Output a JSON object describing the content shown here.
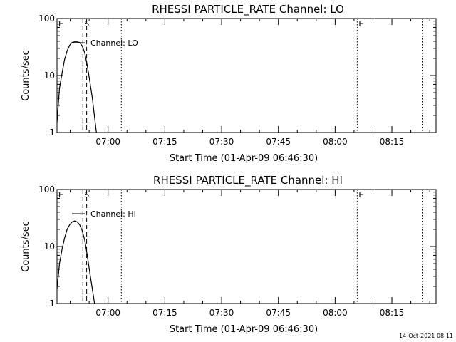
{
  "timestamp": "14-Oct-2021 08:11",
  "chart_data": [
    {
      "type": "line",
      "title": "RHESSI PARTICLE_RATE Channel: LO",
      "xlabel": "Start Time (01-Apr-09 06:46:30)",
      "ylabel": "Counts/sec",
      "yscale": "log",
      "ylim": [
        1,
        100
      ],
      "xlim": [
        "06:46:30",
        "08:26:40"
      ],
      "xticks": [
        "07:00",
        "07:15",
        "07:30",
        "07:45",
        "08:00",
        "08:15"
      ],
      "yticks": [
        "1",
        "10",
        "100"
      ],
      "grid": false,
      "legend": {
        "position": "top-left",
        "label": "Channel: LO"
      },
      "markers": [
        {
          "label": "E",
          "time": "06:46:30",
          "style": "dotted"
        },
        {
          "label": "S",
          "time": "06:53:20",
          "style": "dashed"
        },
        {
          "label": "",
          "time": "06:54:20",
          "style": "dashed"
        },
        {
          "label": "",
          "time": "07:03:30",
          "style": "dotted"
        },
        {
          "label": "E",
          "time": "08:05:50",
          "style": "dotted"
        },
        {
          "label": "",
          "time": "08:23:00",
          "style": "dotted"
        }
      ],
      "series": [
        {
          "name": "Channel: LO",
          "x": [
            "06:46:30",
            "06:47:10",
            "06:47:50",
            "06:48:30",
            "06:49:10",
            "06:49:50",
            "06:50:30",
            "06:51:10",
            "06:51:50",
            "06:52:30",
            "06:53:10",
            "06:53:50",
            "06:54:30",
            "06:55:10",
            "06:55:50",
            "06:56:30",
            "06:56:55"
          ],
          "y": [
            1.5,
            6,
            11,
            19,
            27,
            34,
            38,
            39,
            39,
            38,
            33,
            25,
            15,
            8,
            4,
            1.7,
            1
          ]
        }
      ]
    },
    {
      "type": "line",
      "title": "RHESSI PARTICLE_RATE Channel: HI",
      "xlabel": "Start Time (01-Apr-09 06:46:30)",
      "ylabel": "Counts/sec",
      "yscale": "log",
      "ylim": [
        1,
        100
      ],
      "xlim": [
        "06:46:30",
        "08:26:40"
      ],
      "xticks": [
        "07:00",
        "07:15",
        "07:30",
        "07:45",
        "08:00",
        "08:15"
      ],
      "yticks": [
        "1",
        "10",
        "100"
      ],
      "grid": false,
      "legend": {
        "position": "top-left",
        "label": "Channel: HI"
      },
      "markers": [
        {
          "label": "E",
          "time": "06:46:30",
          "style": "dotted"
        },
        {
          "label": "S",
          "time": "06:53:20",
          "style": "dashed"
        },
        {
          "label": "",
          "time": "06:54:20",
          "style": "dashed"
        },
        {
          "label": "",
          "time": "07:03:30",
          "style": "dotted"
        },
        {
          "label": "E",
          "time": "08:05:50",
          "style": "dotted"
        },
        {
          "label": "",
          "time": "08:23:00",
          "style": "dotted"
        }
      ],
      "series": [
        {
          "name": "Channel: HI",
          "x": [
            "06:46:30",
            "06:47:10",
            "06:47:50",
            "06:48:30",
            "06:49:10",
            "06:49:50",
            "06:50:30",
            "06:51:10",
            "06:51:50",
            "06:52:30",
            "06:53:10",
            "06:53:50",
            "06:54:30",
            "06:55:10",
            "06:55:50",
            "06:56:25"
          ],
          "y": [
            1.8,
            5,
            9,
            14,
            20,
            24,
            27,
            28,
            27,
            24,
            19,
            13,
            7,
            3.5,
            1.8,
            1
          ]
        }
      ]
    }
  ]
}
